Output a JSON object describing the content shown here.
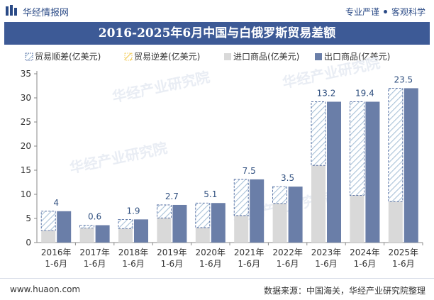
{
  "header": {
    "brand": "华经情报网",
    "tagline_left": "专业严谨",
    "tagline_right": "客观科学",
    "accent": "#3d5a96"
  },
  "footer": {
    "site": "www.huaon.com",
    "source": "数据来源：中国海关，华经产业研究院整理"
  },
  "watermark": "华经产业研究院",
  "chart_data": {
    "type": "bar",
    "title": "2016-2025年6月中国与白俄罗斯贸易差额",
    "categories": [
      [
        "2016年",
        "1-6月"
      ],
      [
        "2017年",
        "1-6月"
      ],
      [
        "2018年",
        "1-6月"
      ],
      [
        "2019年",
        "1-6月"
      ],
      [
        "2020年",
        "1-6月"
      ],
      [
        "2021年",
        "1-6月"
      ],
      [
        "2022年",
        "1-6月"
      ],
      [
        "2023年",
        "1-6月"
      ],
      [
        "2024年",
        "1-6月"
      ],
      [
        "2025年",
        "1-6月"
      ]
    ],
    "ylim": [
      0,
      35
    ],
    "yticks": [
      0,
      5,
      10,
      15,
      20,
      25,
      30,
      35
    ],
    "grid": false,
    "legend_position": "top",
    "series": [
      {
        "name": "贸易顺差(亿美元)",
        "values": [
          4,
          0.6,
          1.9,
          2.7,
          5.1,
          7.5,
          3.5,
          13.2,
          19.4,
          23.5
        ],
        "color": "#3d5a96",
        "style": "hatched"
      },
      {
        "name": "贸易逆差(亿美元)",
        "values": [
          0,
          0,
          0,
          0,
          0,
          0,
          0,
          0,
          0,
          0
        ],
        "color": "#f2c94c",
        "style": "hatched"
      },
      {
        "name": "进口商品(亿美元)",
        "values": [
          2.5,
          3.0,
          2.9,
          5.1,
          3.1,
          5.6,
          8.1,
          16.0,
          9.8,
          8.5
        ],
        "color": "#d9d9d9",
        "style": "solid"
      },
      {
        "name": "出口商品(亿美元)",
        "values": [
          6.5,
          3.6,
          4.8,
          7.8,
          8.2,
          13.1,
          11.6,
          29.2,
          29.2,
          32.0
        ],
        "color": "#6a7ea8",
        "style": "solid"
      }
    ],
    "data_labels": [
      "4",
      "0.6",
      "1.9",
      "2.7",
      "5.1",
      "7.5",
      "3.5",
      "13.2",
      "19.4",
      "23.5"
    ]
  }
}
